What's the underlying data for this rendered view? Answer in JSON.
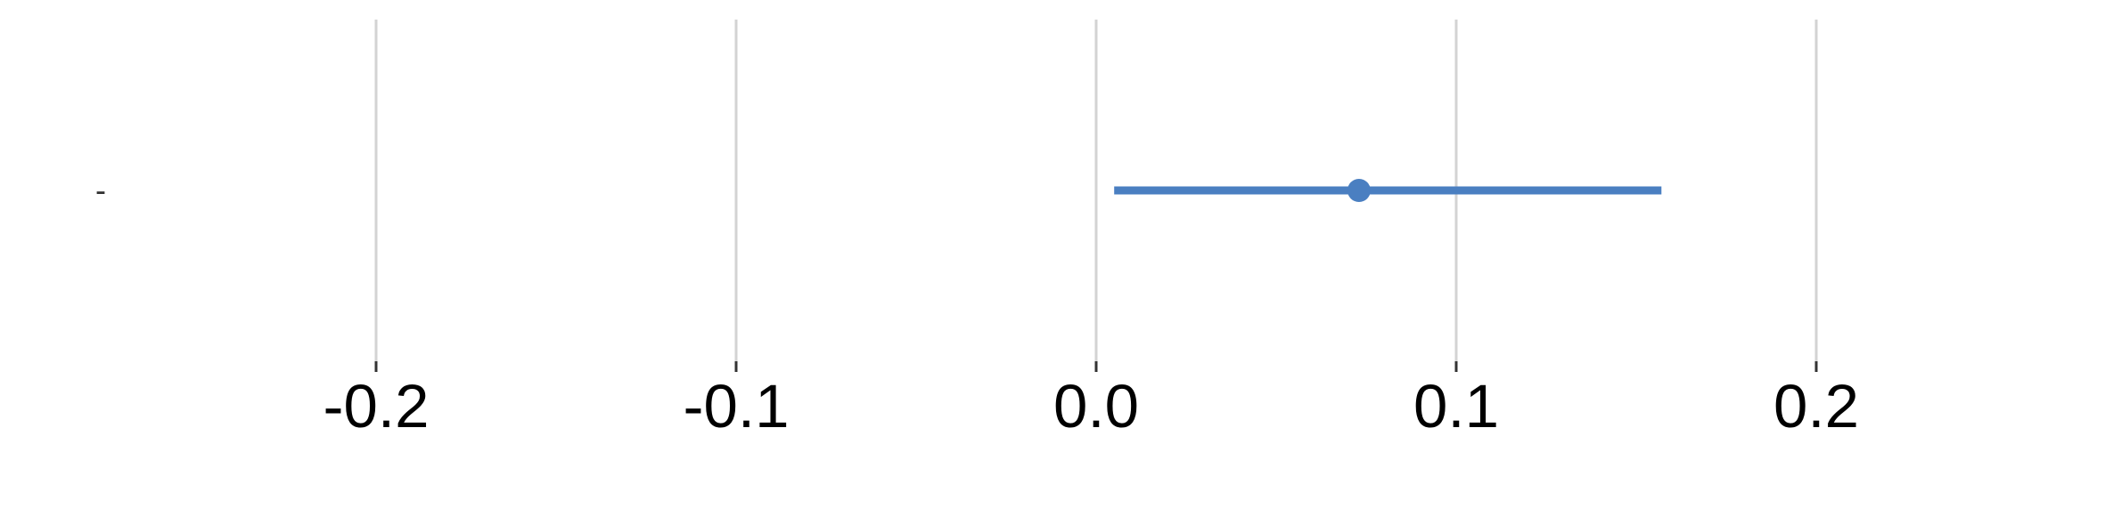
{
  "chart_data": {
    "type": "scatter",
    "subtype": "forest-plot",
    "title": "",
    "xlabel": "",
    "ylabel": "",
    "xlim": [
      -0.26,
      0.34
    ],
    "x_ticks": [
      -0.2,
      -0.1,
      0.0,
      0.1,
      0.2
    ],
    "x_tick_labels": [
      "-0.2",
      "-0.1",
      "0.0",
      "0.1",
      "0.2"
    ],
    "grid": true,
    "legend": "none",
    "rows": [
      {
        "label": "-",
        "estimate": 0.073,
        "ci_low": 0.005,
        "ci_high": 0.157
      }
    ],
    "colors": {
      "point": "#4a7fc1",
      "interval": "#4a7fc1",
      "grid": "#d3d3d3",
      "tick": "#333333"
    }
  }
}
